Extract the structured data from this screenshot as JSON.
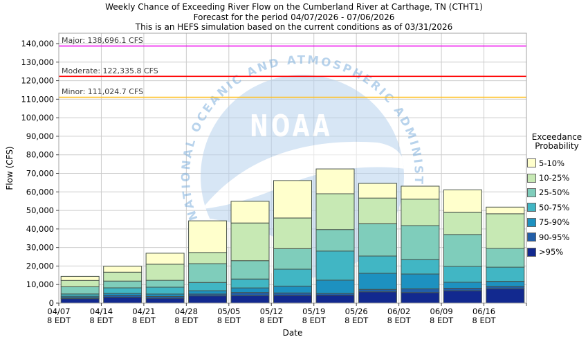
{
  "chart_data": {
    "type": "stacked-bar",
    "title": "Weekly Chance of Exceeding River Flow on the Cumberland River at Carthage, TN (CTHT1)",
    "subtitle1": "Forecast for the period 04/07/2026 - 07/06/2026",
    "subtitle2": "This is an HEFS simulation based on the current conditions as of 03/31/2026",
    "xlabel": "Date",
    "ylabel": "Flow (CFS)",
    "ylim": [
      0,
      145600
    ],
    "ytick_step": 10000,
    "ytick_max": 140000,
    "grid": true,
    "categories": [
      "04/07",
      "04/14",
      "04/21",
      "04/28",
      "05/05",
      "05/12",
      "05/19",
      "05/26",
      "06/02",
      "06/09",
      "06/16"
    ],
    "category_sublabel": "8 EDT",
    "legend_title_line1": "Exceedance",
    "legend_title_line2": "Probability",
    "series": [
      {
        "name": ">95%",
        "color": "#12298f",
        "cumulative_tops_cfs": [
          2400,
          3200,
          2600,
          3900,
          4000,
          4200,
          4300,
          6100,
          5700,
          6700,
          7700
        ]
      },
      {
        "name": "90-95%",
        "color": "#225ea8",
        "cumulative_tops_cfs": [
          3000,
          4200,
          3600,
          4900,
          5700,
          5500,
          5200,
          7400,
          7700,
          8000,
          9000
        ]
      },
      {
        "name": "75-90%",
        "color": "#1d91c0",
        "cumulative_tops_cfs": [
          3700,
          5200,
          4900,
          6700,
          8200,
          9200,
          12400,
          16100,
          15700,
          11300,
          11700
        ]
      },
      {
        "name": "50-75%",
        "color": "#41b6c4",
        "cumulative_tops_cfs": [
          4900,
          8200,
          8600,
          11100,
          13000,
          18300,
          28100,
          25400,
          23500,
          19800,
          19400
        ]
      },
      {
        "name": "25-50%",
        "color": "#7fcdbb",
        "cumulative_tops_cfs": [
          8800,
          11900,
          12300,
          21300,
          22900,
          29400,
          39700,
          42800,
          41800,
          37000,
          29500
        ]
      },
      {
        "name": "10-25%",
        "color": "#c7e9b4",
        "cumulative_tops_cfs": [
          12200,
          16700,
          21000,
          27300,
          43200,
          45900,
          59000,
          56700,
          56100,
          49000,
          48200
        ]
      },
      {
        "name": "5-10%",
        "color": "#ffffcc",
        "cumulative_tops_cfs": [
          14400,
          19900,
          26900,
          44400,
          54900,
          66100,
          72400,
          64600,
          63100,
          61100,
          51800
        ]
      }
    ],
    "thresholds": [
      {
        "name": "Major",
        "label": "Major: 138,696.1 CFS",
        "value_cfs": 138696.1,
        "color": "#ee00ee"
      },
      {
        "name": "Moderate",
        "label": "Moderate: 122,335.8 CFS",
        "value_cfs": 122335.8,
        "color": "#ff0000"
      },
      {
        "name": "Minor",
        "label": "Minor: 111,024.7 CFS",
        "value_cfs": 111024.7,
        "color": "#ffc125"
      }
    ],
    "watermark": {
      "ring_text": "NATIONAL OCEANIC AND ATMOSPHERIC ADMINISTRATION",
      "center_text": "NOAA",
      "disc_color": "#b8d2ee",
      "ring_text_color": "#7fb0dd"
    }
  }
}
